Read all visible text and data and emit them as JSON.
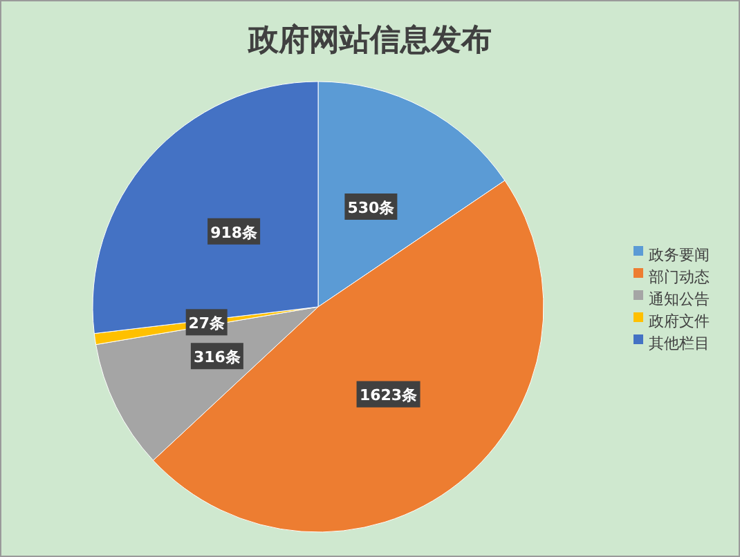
{
  "chart_data": {
    "type": "pie",
    "title": "政府网站信息发布",
    "categories": [
      "政务要闻",
      "部门动态",
      "通知公告",
      "政府文件",
      "其他栏目"
    ],
    "values": [
      530,
      1623,
      316,
      27,
      918
    ],
    "colors": [
      "#5b9bd5",
      "#ed7d31",
      "#a5a5a5",
      "#ffc000",
      "#4472c4"
    ],
    "value_labels": [
      "530条",
      "1623条",
      "316条",
      "27条",
      "918条"
    ],
    "legend": "right"
  }
}
